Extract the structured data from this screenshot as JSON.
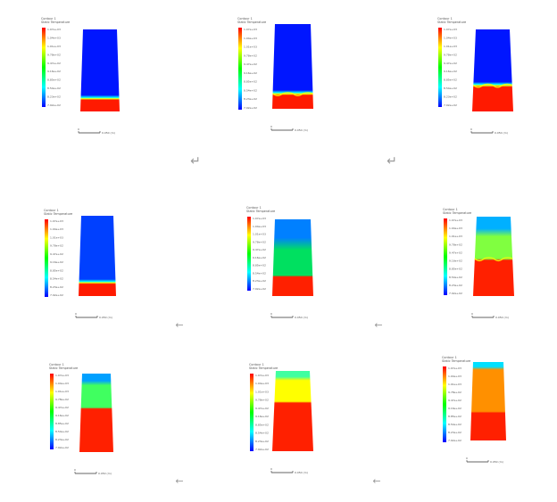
{
  "page": {
    "background": "#ffffff",
    "arrow_color": "#9a9a9a",
    "arrow_down_symbol": "↵",
    "arrow_left_symbol": "←"
  },
  "colormap": [
    "#0000ff",
    "#0080ff",
    "#00ffff",
    "#00ff80",
    "#00ff00",
    "#80ff00",
    "#ffff00",
    "#ff8000",
    "#ff0000"
  ],
  "panels": [
    {
      "id": "p1",
      "title": [
        "Contour 1",
        "Static Temperature"
      ],
      "ticks": [
        "1.07e+03",
        "1.04e+03",
        "1.01e+03",
        "9.78e+02",
        "9.47e+02",
        "9.16e+02",
        "8.85e+02",
        "8.54e+02",
        "8.23e+02",
        "7.92e+02"
      ],
      "hot_fraction": 0.14,
      "mid_fraction": 0.0,
      "top_color": "#0016ff",
      "mid_color": "#0016ff",
      "bottom_color": "#ff1a00",
      "interface_shape": "flat",
      "scale_label": "0.050 (m)"
    },
    {
      "id": "p2",
      "title": [
        "Contour 1",
        "Static Temperature"
      ],
      "ticks": [
        "1.07e+03",
        "1.04e+03",
        "1.01e+03",
        "9.78e+02",
        "9.47e+02",
        "9.16e+02",
        "8.85e+02",
        "8.54e+02",
        "8.23e+02",
        "7.92e+02"
      ],
      "hot_fraction": 0.16,
      "mid_fraction": 0.0,
      "top_color": "#0016ff",
      "mid_color": "#0016ff",
      "bottom_color": "#ff1a00",
      "interface_shape": "wave",
      "scale_label": "0.050 (m)"
    },
    {
      "id": "p3",
      "title": [
        "Contour 1",
        "Static Temperature"
      ],
      "ticks": [
        "1.07e+03",
        "1.04e+03",
        "1.01e+03",
        "9.78e+02",
        "9.47e+02",
        "9.16e+02",
        "8.85e+02",
        "8.54e+02",
        "8.23e+02",
        "7.92e+02"
      ],
      "hot_fraction": 0.3,
      "mid_fraction": 0.0,
      "top_color": "#0016ff",
      "mid_color": "#0016ff",
      "bottom_color": "#ff1a00",
      "interface_shape": "wave",
      "scale_label": "0.050 (m)"
    },
    {
      "id": "p4",
      "title": [
        "Contour 1",
        "Static Temperature"
      ],
      "ticks": [
        "1.07e+03",
        "1.04e+03",
        "1.01e+03",
        "9.78e+02",
        "9.47e+02",
        "9.16e+02",
        "8.85e+02",
        "8.54e+02",
        "8.23e+02",
        "7.92e+02"
      ],
      "hot_fraction": 0.15,
      "mid_fraction": 0.0,
      "top_color": "#0040ff",
      "mid_color": "#1870ff",
      "bottom_color": "#ff1a00",
      "interface_shape": "flat",
      "scale_label": "0.050 (m)"
    },
    {
      "id": "p5",
      "title": [
        "Contour 1",
        "Static Temperature"
      ],
      "ticks": [
        "1.07e+03",
        "1.04e+03",
        "1.01e+03",
        "9.78e+02",
        "9.47e+02",
        "9.16e+02",
        "8.85e+02",
        "8.54e+02",
        "8.23e+02",
        "7.92e+02"
      ],
      "hot_fraction": 0.25,
      "mid_fraction": 0.35,
      "top_color": "#0080ff",
      "mid_color": "#00e060",
      "bottom_color": "#ff2000",
      "interface_shape": "flat",
      "scale_label": "0.050 (m)"
    },
    {
      "id": "p6",
      "title": [
        "Contour 1",
        "Static Temperature"
      ],
      "ticks": [
        "1.07e+03",
        "1.04e+03",
        "1.01e+03",
        "9.78e+02",
        "9.47e+02",
        "9.16e+02",
        "8.85e+02",
        "8.54e+02",
        "8.23e+02",
        "7.92e+02"
      ],
      "hot_fraction": 0.45,
      "mid_fraction": 0.3,
      "top_color": "#00b0ff",
      "mid_color": "#80ff40",
      "bottom_color": "#ff2000",
      "interface_shape": "wave",
      "scale_label": "0.050 (m)"
    },
    {
      "id": "p7",
      "title": [
        "Contour 1",
        "Static Temperature"
      ],
      "ticks": [
        "1.07e+03",
        "1.04e+03",
        "1.01e+03",
        "9.78e+02",
        "9.47e+02",
        "9.16e+02",
        "8.85e+02",
        "8.54e+02",
        "8.23e+02",
        "7.92e+02"
      ],
      "hot_fraction": 0.55,
      "mid_fraction": 0.3,
      "top_color": "#00a0ff",
      "mid_color": "#40ff60",
      "bottom_color": "#ff2000",
      "interface_shape": "flat",
      "scale_label": "0.050 (m)"
    },
    {
      "id": "p8",
      "title": [
        "Contour 1",
        "Static Temperature"
      ],
      "ticks": [
        "1.07e+03",
        "1.04e+03",
        "1.01e+03",
        "9.78e+02",
        "9.47e+02",
        "9.16e+02",
        "8.85e+02",
        "8.54e+02",
        "8.23e+02",
        "7.92e+02"
      ],
      "hot_fraction": 0.6,
      "mid_fraction": 0.28,
      "top_color": "#40ffa0",
      "mid_color": "#ffff00",
      "bottom_color": "#ff2000",
      "interface_shape": "flat",
      "scale_label": "0.050 (m)"
    },
    {
      "id": "p9",
      "title": [
        "Contour 1",
        "Static Temperature"
      ],
      "ticks": [
        "1.07e+03",
        "1.04e+03",
        "1.01e+03",
        "9.78e+02",
        "9.47e+02",
        "9.16e+02",
        "8.85e+02",
        "8.54e+02",
        "8.23e+02",
        "7.92e+02"
      ],
      "hot_fraction": 0.35,
      "mid_fraction": 0.55,
      "top_color": "#00e0ff",
      "mid_color": "#ff9000",
      "bottom_color": "#ff2000",
      "interface_shape": "flat",
      "scale_label": "0.050 (m)"
    }
  ],
  "arrows": [
    {
      "symbol": "↵"
    },
    {
      "symbol": "↵"
    },
    {
      "symbol": "←"
    },
    {
      "symbol": "←"
    },
    {
      "symbol": "←"
    },
    {
      "symbol": "←"
    }
  ]
}
